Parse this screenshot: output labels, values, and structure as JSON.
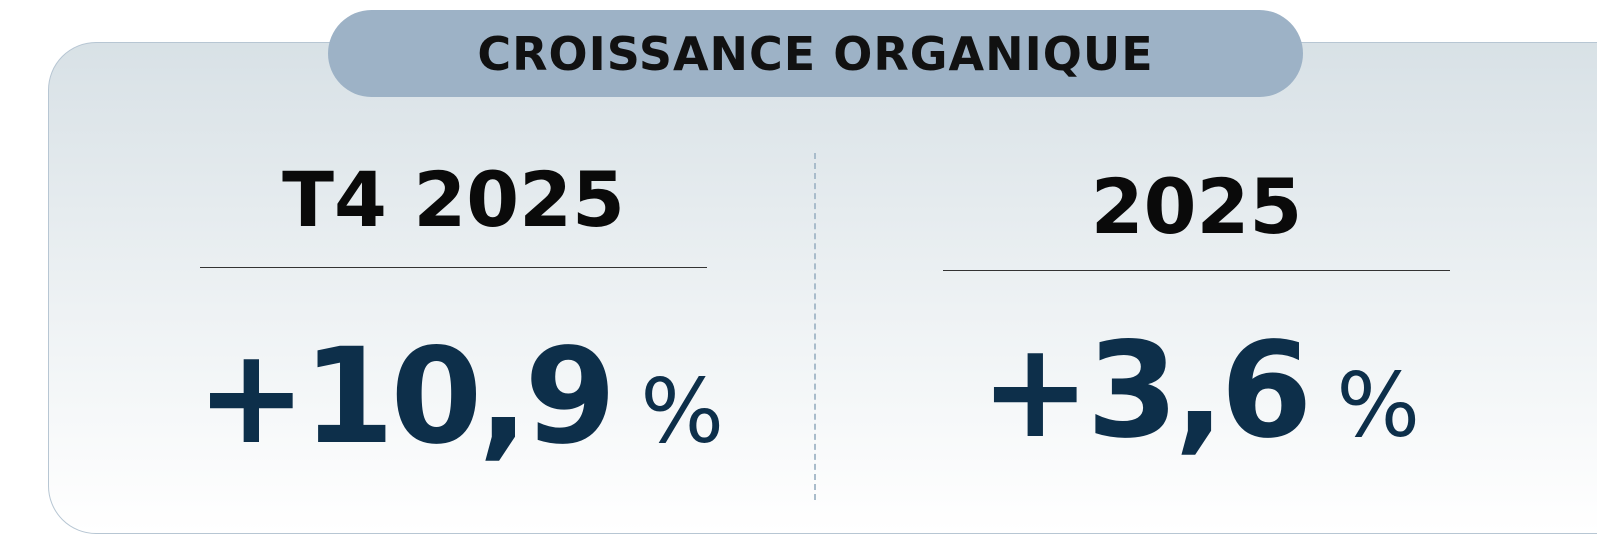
{
  "header": {
    "title": "CROISSANCE ORGANIQUE"
  },
  "panels": [
    {
      "label": "T4 2025",
      "value": "+10,9",
      "unit": "%"
    },
    {
      "label": "2025",
      "value": "+3,6",
      "unit": "%"
    }
  ]
}
